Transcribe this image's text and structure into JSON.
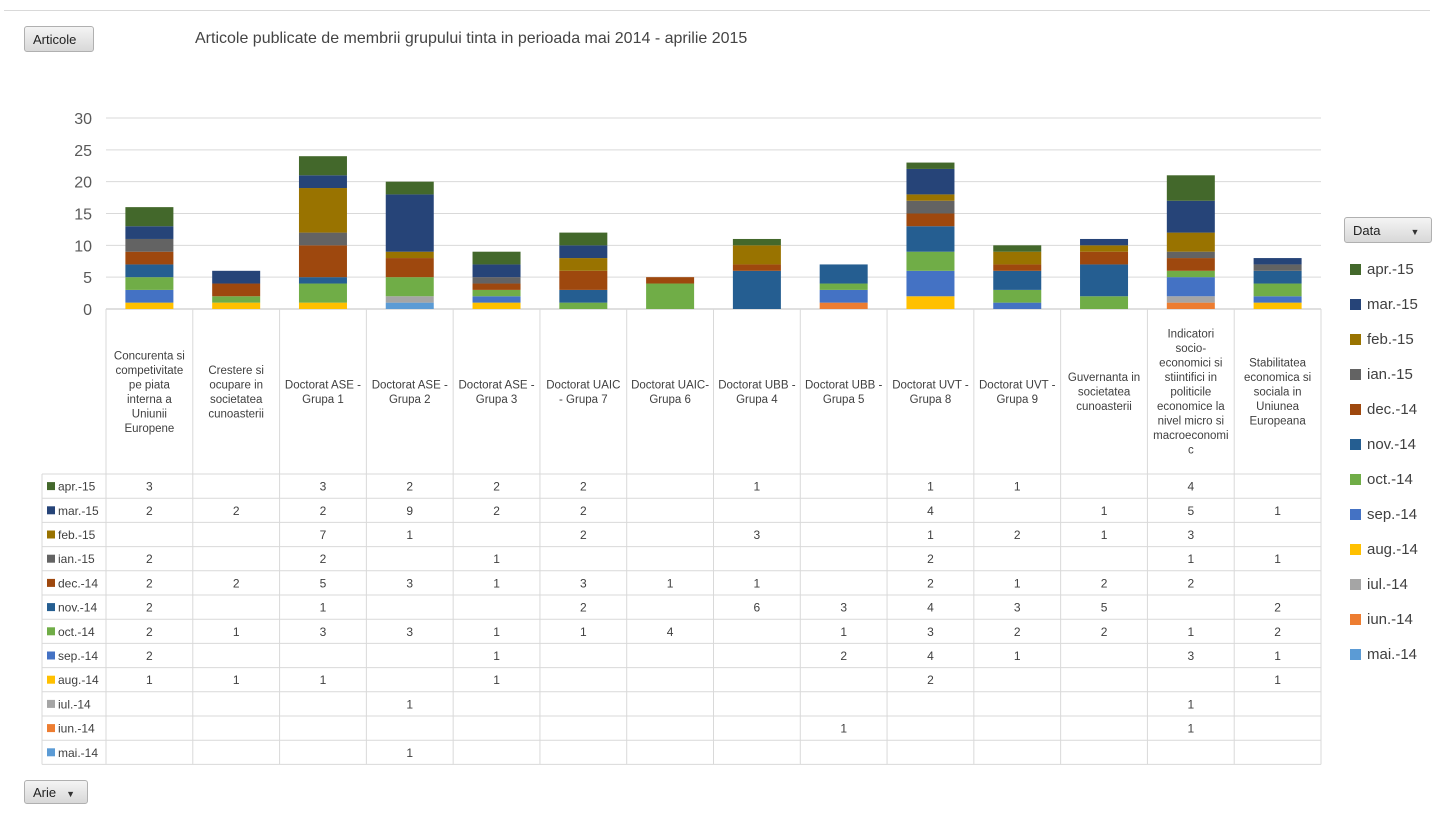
{
  "title": "Articole publicate de membrii grupului tinta in perioada mai 2014 - aprilie 2015",
  "buttons": {
    "articole": "Articole",
    "arie": "Arie",
    "data": "Data"
  },
  "icons": {
    "dropdown": "dropdown-arrow-icon"
  },
  "chart_data": {
    "type": "bar",
    "stacked": true,
    "ylim": [
      0,
      30
    ],
    "yticks": [
      0,
      5,
      10,
      15,
      20,
      25,
      30
    ],
    "grid": true,
    "legend_position": "right",
    "categories": [
      "Concurenta si competivitate pe piata interna a Uniunii Europene",
      "Crestere si ocupare in societatea cunoasterii",
      "Doctorat ASE - Grupa 1",
      "Doctorat ASE - Grupa 2",
      "Doctorat ASE - Grupa 3",
      "Doctorat UAIC - Grupa 7",
      "Doctorat UAIC- Grupa 6",
      "Doctorat UBB - Grupa 4",
      "Doctorat UBB - Grupa 5",
      "Doctorat UVT - Grupa 8",
      "Doctorat UVT - Grupa 9",
      "Guvernanta in societatea cunoasterii",
      "Indicatori socio-economici si stiintifici in politicile economice la nivel micro si macroeconomic",
      "Stabilitatea economica si sociala in Uniunea Europeana"
    ],
    "category_lines": [
      [
        "Concurenta si",
        "competivitate",
        "pe piata",
        "interna a",
        "Uniunii",
        "Europene"
      ],
      [
        "Crestere si",
        "ocupare in",
        "societatea",
        "cunoasterii"
      ],
      [
        "Doctorat ASE -",
        "Grupa 1"
      ],
      [
        "Doctorat ASE -",
        "Grupa 2"
      ],
      [
        "Doctorat ASE -",
        "Grupa 3"
      ],
      [
        "Doctorat UAIC",
        "- Grupa 7"
      ],
      [
        "Doctorat UAIC-",
        "Grupa 6"
      ],
      [
        "Doctorat UBB -",
        "Grupa 4"
      ],
      [
        "Doctorat UBB -",
        "Grupa 5"
      ],
      [
        "Doctorat UVT -",
        "Grupa 8"
      ],
      [
        "Doctorat UVT -",
        "Grupa 9"
      ],
      [
        "Guvernanta in",
        "societatea",
        "cunoasterii"
      ],
      [
        "Indicatori",
        "socio-",
        "economici si",
        "stiintifici in",
        "politicile",
        "economice la",
        "nivel micro si",
        "macroeconomi",
        "c"
      ],
      [
        "Stabilitatea",
        "economica si",
        "sociala in",
        "Uniunea",
        "Europeana"
      ]
    ],
    "series": [
      {
        "name": "mai.-14",
        "color": "#5b9bd5",
        "values": [
          null,
          null,
          null,
          1,
          null,
          null,
          null,
          null,
          null,
          null,
          null,
          null,
          null,
          null
        ]
      },
      {
        "name": "iun.-14",
        "color": "#ed7d31",
        "values": [
          null,
          null,
          null,
          null,
          null,
          null,
          null,
          null,
          1,
          null,
          null,
          null,
          1,
          null
        ]
      },
      {
        "name": "iul.-14",
        "color": "#a5a5a5",
        "values": [
          null,
          null,
          null,
          1,
          null,
          null,
          null,
          null,
          null,
          null,
          null,
          null,
          1,
          null
        ]
      },
      {
        "name": "aug.-14",
        "color": "#ffc000",
        "values": [
          1,
          1,
          1,
          null,
          1,
          null,
          null,
          null,
          null,
          2,
          null,
          null,
          null,
          1
        ]
      },
      {
        "name": "sep.-14",
        "color": "#4472c4",
        "values": [
          2,
          null,
          null,
          null,
          1,
          null,
          null,
          null,
          2,
          4,
          1,
          null,
          3,
          1
        ]
      },
      {
        "name": "oct.-14",
        "color": "#70ad47",
        "values": [
          2,
          1,
          3,
          3,
          1,
          1,
          4,
          null,
          1,
          3,
          2,
          2,
          1,
          2
        ]
      },
      {
        "name": "nov.-14",
        "color": "#255e91",
        "values": [
          2,
          null,
          1,
          null,
          null,
          2,
          null,
          6,
          3,
          4,
          3,
          5,
          null,
          2
        ]
      },
      {
        "name": "dec.-14",
        "color": "#9e480e",
        "values": [
          2,
          2,
          5,
          3,
          1,
          3,
          1,
          1,
          null,
          2,
          1,
          2,
          2,
          null
        ]
      },
      {
        "name": "ian.-15",
        "color": "#636363",
        "values": [
          2,
          null,
          2,
          null,
          1,
          null,
          null,
          null,
          null,
          2,
          null,
          null,
          1,
          1
        ]
      },
      {
        "name": "feb.-15",
        "color": "#997300",
        "values": [
          null,
          null,
          7,
          1,
          null,
          2,
          null,
          3,
          null,
          1,
          2,
          1,
          3,
          null
        ]
      },
      {
        "name": "mar.-15",
        "color": "#264478",
        "values": [
          2,
          2,
          2,
          9,
          2,
          2,
          null,
          null,
          null,
          4,
          null,
          1,
          5,
          1
        ]
      },
      {
        "name": "apr.-15",
        "color": "#43682b",
        "values": [
          3,
          null,
          3,
          2,
          2,
          2,
          null,
          1,
          null,
          1,
          1,
          null,
          4,
          null
        ]
      }
    ]
  }
}
